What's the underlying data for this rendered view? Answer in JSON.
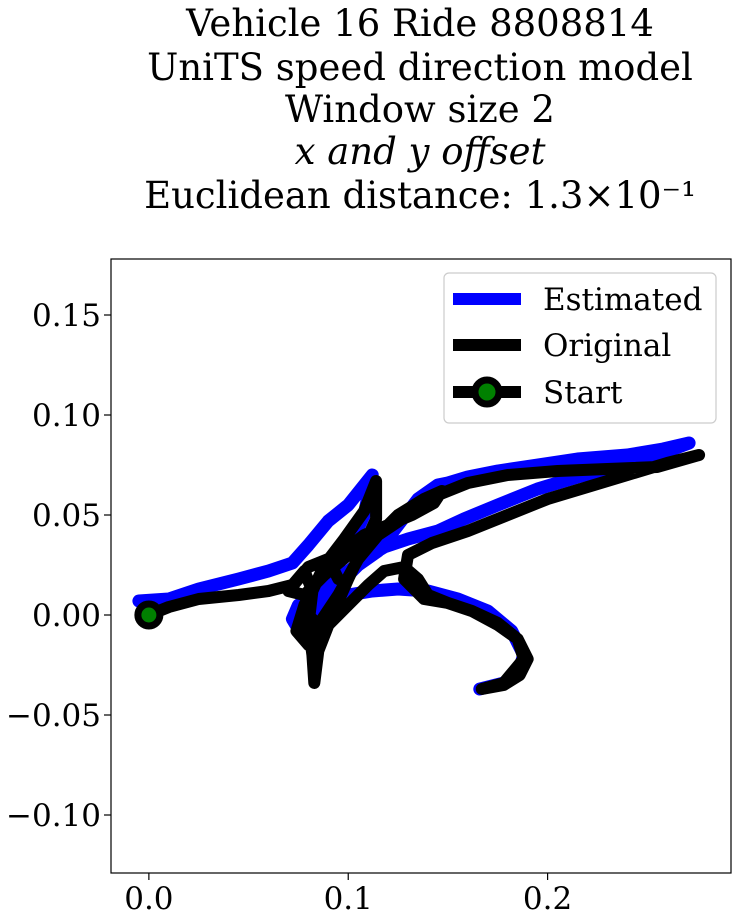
{
  "chart_data": {
    "type": "line",
    "title_lines": [
      "Vehicle 16 Ride 8808814",
      "UniTS speed direction model",
      "Window size 2",
      "x and y offset",
      "Euclidean distance: 1.3×10⁻¹"
    ],
    "xlabel": "",
    "ylabel": "",
    "xlim": [
      -0.019,
      0.292
    ],
    "ylim": [
      -0.129,
      0.178
    ],
    "xticks": [
      0.0,
      0.1,
      0.2
    ],
    "xtick_labels": [
      "0.0",
      "0.1",
      "0.2"
    ],
    "yticks": [
      0.15,
      0.1,
      0.05,
      0.0,
      -0.05,
      -0.1
    ],
    "ytick_labels": [
      "0.15",
      "0.10",
      "0.05",
      "0.00",
      "−0.05",
      "−0.10"
    ],
    "grid": false,
    "legend_position": "top-right",
    "series": [
      {
        "name": "Estimated",
        "color": "#0000ff",
        "points": [
          [
            -0.005,
            0.007
          ],
          [
            0.01,
            0.008
          ],
          [
            0.025,
            0.013
          ],
          [
            0.045,
            0.018
          ],
          [
            0.06,
            0.022
          ],
          [
            0.072,
            0.026
          ],
          [
            0.08,
            0.035
          ],
          [
            0.09,
            0.047
          ],
          [
            0.1,
            0.055
          ],
          [
            0.112,
            0.07
          ],
          [
            0.108,
            0.05
          ],
          [
            0.1,
            0.033
          ],
          [
            0.09,
            0.018
          ],
          [
            0.083,
            0.003
          ],
          [
            0.08,
            -0.008
          ],
          [
            0.085,
            0.0
          ],
          [
            0.095,
            0.015
          ],
          [
            0.105,
            0.025
          ],
          [
            0.115,
            0.032
          ],
          [
            0.125,
            0.045
          ],
          [
            0.135,
            0.058
          ],
          [
            0.145,
            0.065
          ],
          [
            0.15,
            0.066
          ],
          [
            0.16,
            0.069
          ],
          [
            0.175,
            0.072
          ],
          [
            0.195,
            0.075
          ],
          [
            0.215,
            0.078
          ],
          [
            0.24,
            0.08
          ],
          [
            0.258,
            0.083
          ],
          [
            0.271,
            0.086
          ],
          [
            0.255,
            0.08
          ],
          [
            0.235,
            0.074
          ],
          [
            0.215,
            0.069
          ],
          [
            0.195,
            0.063
          ],
          [
            0.175,
            0.055
          ],
          [
            0.158,
            0.048
          ],
          [
            0.145,
            0.042
          ],
          [
            0.13,
            0.038
          ],
          [
            0.118,
            0.034
          ],
          [
            0.108,
            0.028
          ],
          [
            0.095,
            0.018
          ],
          [
            0.085,
            0.01
          ],
          [
            0.075,
            0.005
          ],
          [
            0.072,
            -0.002
          ],
          [
            0.078,
            -0.012
          ],
          [
            0.09,
            0.0
          ],
          [
            0.1,
            0.01
          ],
          [
            0.112,
            0.012
          ],
          [
            0.125,
            0.013
          ],
          [
            0.14,
            0.012
          ],
          [
            0.155,
            0.008
          ],
          [
            0.17,
            0.002
          ],
          [
            0.182,
            -0.008
          ],
          [
            0.188,
            -0.02
          ],
          [
            0.185,
            -0.03
          ],
          [
            0.178,
            -0.034
          ],
          [
            0.166,
            -0.037
          ]
        ]
      },
      {
        "name": "Original",
        "color": "#000000",
        "points": [
          [
            0.0,
            0.0
          ],
          [
            0.01,
            0.004
          ],
          [
            0.025,
            0.008
          ],
          [
            0.045,
            0.01
          ],
          [
            0.06,
            0.012
          ],
          [
            0.072,
            0.015
          ],
          [
            0.078,
            0.022
          ],
          [
            0.082,
            0.012
          ],
          [
            0.08,
            -0.005
          ],
          [
            0.082,
            -0.02
          ],
          [
            0.083,
            -0.034
          ],
          [
            0.085,
            -0.018
          ],
          [
            0.092,
            0.0
          ],
          [
            0.1,
            0.018
          ],
          [
            0.108,
            0.035
          ],
          [
            0.114,
            0.048
          ],
          [
            0.114,
            0.067
          ],
          [
            0.108,
            0.052
          ],
          [
            0.098,
            0.038
          ],
          [
            0.088,
            0.025
          ],
          [
            0.082,
            0.012
          ],
          [
            0.08,
            0.0
          ],
          [
            0.085,
            -0.005
          ],
          [
            0.095,
            0.01
          ],
          [
            0.105,
            0.028
          ],
          [
            0.115,
            0.04
          ],
          [
            0.125,
            0.05
          ],
          [
            0.138,
            0.058
          ],
          [
            0.147,
            0.062
          ],
          [
            0.143,
            0.056
          ],
          [
            0.132,
            0.05
          ],
          [
            0.12,
            0.045
          ],
          [
            0.108,
            0.04
          ],
          [
            0.095,
            0.03
          ],
          [
            0.085,
            0.018
          ],
          [
            0.078,
            0.005
          ],
          [
            0.074,
            -0.008
          ],
          [
            0.08,
            -0.015
          ],
          [
            0.09,
            -0.005
          ],
          [
            0.1,
            0.005
          ],
          [
            0.11,
            0.015
          ],
          [
            0.118,
            0.022
          ],
          [
            0.128,
            0.024
          ],
          [
            0.135,
            0.018
          ],
          [
            0.14,
            0.01
          ],
          [
            0.15,
            0.006
          ],
          [
            0.162,
            0.002
          ],
          [
            0.175,
            -0.005
          ],
          [
            0.185,
            -0.012
          ],
          [
            0.19,
            -0.022
          ],
          [
            0.186,
            -0.03
          ],
          [
            0.178,
            -0.035
          ],
          [
            0.167,
            -0.037
          ],
          [
            0.178,
            -0.034
          ],
          [
            0.188,
            -0.022
          ],
          [
            0.185,
            -0.012
          ],
          [
            0.175,
            -0.004
          ],
          [
            0.162,
            0.002
          ],
          [
            0.15,
            0.006
          ],
          [
            0.138,
            0.008
          ],
          [
            0.128,
            0.018
          ],
          [
            0.13,
            0.03
          ],
          [
            0.142,
            0.036
          ],
          [
            0.16,
            0.042
          ],
          [
            0.18,
            0.05
          ],
          [
            0.2,
            0.058
          ],
          [
            0.22,
            0.064
          ],
          [
            0.24,
            0.07
          ],
          [
            0.26,
            0.076
          ],
          [
            0.276,
            0.08
          ],
          [
            0.255,
            0.074
          ],
          [
            0.23,
            0.073
          ],
          [
            0.205,
            0.072
          ],
          [
            0.18,
            0.07
          ],
          [
            0.16,
            0.066
          ],
          [
            0.145,
            0.06
          ],
          [
            0.13,
            0.05
          ],
          [
            0.115,
            0.04
          ],
          [
            0.1,
            0.03
          ],
          [
            0.088,
            0.02
          ],
          [
            0.078,
            0.01
          ],
          [
            0.07,
            0.012
          ],
          [
            0.08,
            0.024
          ],
          [
            0.09,
            0.028
          ],
          [
            0.095,
            0.018
          ]
        ]
      }
    ],
    "start": {
      "name": "Start",
      "point": [
        0.0,
        0.0
      ],
      "line_color": "#000000",
      "marker_edge": "#000000",
      "marker_face": "#008000"
    }
  }
}
